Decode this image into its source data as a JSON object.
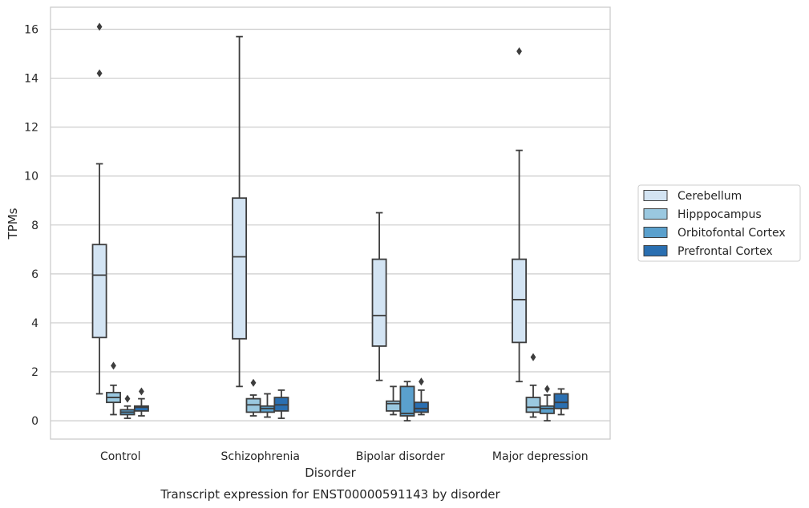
{
  "chart_data": {
    "type": "box",
    "title": "Transcript expression for ENST00000591143 by disorder",
    "xlabel": "Disorder",
    "ylabel": "TPMs",
    "ylim": [
      -0.75,
      16.9
    ],
    "yticks": [
      0,
      2,
      4,
      6,
      8,
      10,
      12,
      14,
      16
    ],
    "grid": true,
    "legend_position": "right",
    "categories": [
      "Control",
      "Schizophrenia",
      "Bipolar disorder",
      "Major depression"
    ],
    "series": [
      {
        "name": "Cerebellum",
        "color": "#d3e4f3",
        "boxes": [
          {
            "whislo": 1.1,
            "q1": 3.4,
            "med": 5.95,
            "q3": 7.2,
            "whishi": 10.5,
            "fliers": [
              14.2,
              16.1
            ]
          },
          {
            "whislo": 1.4,
            "q1": 3.35,
            "med": 6.7,
            "q3": 9.1,
            "whishi": 15.7,
            "fliers": []
          },
          {
            "whislo": 1.65,
            "q1": 3.05,
            "med": 4.3,
            "q3": 6.6,
            "whishi": 8.5,
            "fliers": []
          },
          {
            "whislo": 1.6,
            "q1": 3.2,
            "med": 4.95,
            "q3": 6.6,
            "whishi": 11.05,
            "fliers": [
              15.1
            ]
          }
        ]
      },
      {
        "name": "Hipppocampus",
        "color": "#9ac8e0",
        "boxes": [
          {
            "whislo": 0.25,
            "q1": 0.75,
            "med": 0.95,
            "q3": 1.15,
            "whishi": 1.45,
            "fliers": [
              2.25
            ]
          },
          {
            "whislo": 0.2,
            "q1": 0.35,
            "med": 0.65,
            "q3": 0.9,
            "whishi": 1.05,
            "fliers": [
              1.55
            ]
          },
          {
            "whislo": 0.25,
            "q1": 0.4,
            "med": 0.7,
            "q3": 0.8,
            "whishi": 1.4,
            "fliers": []
          },
          {
            "whislo": 0.15,
            "q1": 0.35,
            "med": 0.55,
            "q3": 0.95,
            "whishi": 1.45,
            "fliers": [
              2.6
            ]
          }
        ]
      },
      {
        "name": "Orbitofontal Cortex",
        "color": "#5aa0cd",
        "boxes": [
          {
            "whislo": 0.1,
            "q1": 0.25,
            "med": 0.35,
            "q3": 0.45,
            "whishi": 0.6,
            "fliers": [
              0.9
            ]
          },
          {
            "whislo": 0.15,
            "q1": 0.35,
            "med": 0.5,
            "q3": 0.6,
            "whishi": 1.1,
            "fliers": []
          },
          {
            "whislo": 0.0,
            "q1": 0.2,
            "med": 0.3,
            "q3": 1.4,
            "whishi": 1.6,
            "fliers": []
          },
          {
            "whislo": 0.0,
            "q1": 0.3,
            "med": 0.5,
            "q3": 0.6,
            "whishi": 1.05,
            "fliers": [
              1.3
            ]
          }
        ]
      },
      {
        "name": "Prefrontal Cortex",
        "color": "#2a6fb1",
        "boxes": [
          {
            "whislo": 0.2,
            "q1": 0.4,
            "med": 0.55,
            "q3": 0.6,
            "whishi": 0.9,
            "fliers": [
              1.2
            ]
          },
          {
            "whislo": 0.1,
            "q1": 0.4,
            "med": 0.65,
            "q3": 0.95,
            "whishi": 1.25,
            "fliers": []
          },
          {
            "whislo": 0.25,
            "q1": 0.35,
            "med": 0.5,
            "q3": 0.75,
            "whishi": 1.25,
            "fliers": [
              1.6
            ]
          },
          {
            "whislo": 0.25,
            "q1": 0.5,
            "med": 0.75,
            "q3": 1.1,
            "whishi": 1.3,
            "fliers": []
          }
        ]
      }
    ]
  }
}
